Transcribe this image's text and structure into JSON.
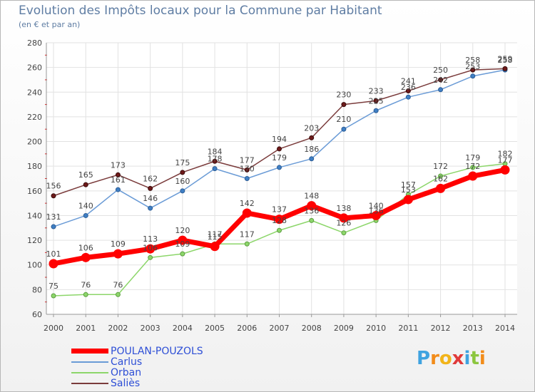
{
  "chart_data": {
    "type": "line",
    "title": "Evolution des Impôts locaux pour la Commune par Habitant",
    "subtitle": "(en € et par an)",
    "x": [
      "2000",
      "2001",
      "2002",
      "2003",
      "2004",
      "2005",
      "2006",
      "2007",
      "2008",
      "2009",
      "2010",
      "2011",
      "2012",
      "2013",
      "2014"
    ],
    "ylim": [
      60,
      280
    ],
    "yticks": [
      "60",
      "80",
      "100",
      "120",
      "140",
      "160",
      "180",
      "200",
      "220",
      "240",
      "260",
      "280"
    ],
    "grid": true,
    "legend_position": "bottom-left",
    "series": [
      {
        "name": "POULAN-POUZOLS",
        "color": "#ff0000",
        "values": [
          101,
          106,
          109,
          113,
          120,
          115,
          142,
          137,
          148,
          138,
          140,
          153,
          162,
          172,
          177
        ],
        "labels": [
          "101",
          "106",
          "109",
          "113",
          "120",
          "115",
          "142",
          "137",
          "148",
          "138",
          "140",
          "153",
          "162",
          "172",
          "177"
        ]
      },
      {
        "name": "Carlus",
        "color": "#6a9bd6",
        "values": [
          131,
          140,
          161,
          146,
          160,
          178,
          170,
          179,
          186,
          210,
          225,
          236,
          242,
          253,
          258
        ],
        "labels": [
          "131",
          "140",
          "161",
          "146",
          "160",
          "178",
          "170",
          "179",
          "186",
          "210",
          "225",
          "236",
          "242",
          "253",
          "258"
        ]
      },
      {
        "name": "Orban",
        "color": "#8cd66a",
        "values": [
          75,
          76,
          76,
          106,
          109,
          117,
          117,
          128,
          136,
          126,
          136,
          157,
          172,
          179,
          182
        ],
        "labels": [
          "75",
          "76",
          "76",
          "106",
          "109",
          "117",
          "117",
          "128",
          "136",
          "126",
          "136",
          "157",
          "172",
          "179",
          "182"
        ]
      },
      {
        "name": "Saliès",
        "color": "#7a3b3b",
        "values": [
          156,
          165,
          173,
          162,
          175,
          184,
          177,
          194,
          203,
          230,
          233,
          241,
          250,
          258,
          259
        ],
        "labels": [
          "156",
          "165",
          "173",
          "162",
          "175",
          "184",
          "177",
          "194",
          "203",
          "230",
          "233",
          "241",
          "250",
          "258",
          "259"
        ]
      }
    ]
  },
  "logo": {
    "text": "Proxiti",
    "letters": [
      "P",
      "r",
      "o",
      "x",
      "i",
      "t",
      "i"
    ],
    "colors": [
      "#3fa3e0",
      "#f28c1a",
      "#f2b41a",
      "#e03a3a",
      "#3fa3e0",
      "#8cc63f",
      "#f28c1a"
    ]
  }
}
